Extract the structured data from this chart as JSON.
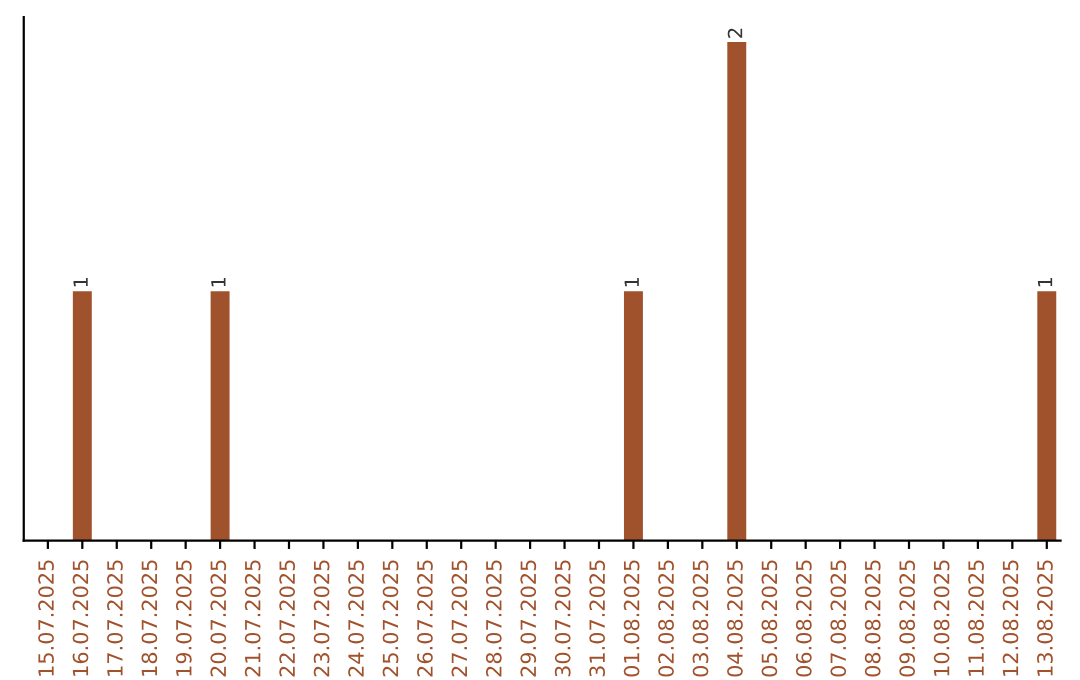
{
  "chart_data": {
    "type": "bar",
    "categories": [
      "15.07.2025",
      "16.07.2025",
      "17.07.2025",
      "18.07.2025",
      "19.07.2025",
      "20.07.2025",
      "21.07.2025",
      "22.07.2025",
      "23.07.2025",
      "24.07.2025",
      "25.07.2025",
      "26.07.2025",
      "27.07.2025",
      "28.07.2025",
      "29.07.2025",
      "30.07.2025",
      "31.07.2025",
      "01.08.2025",
      "02.08.2025",
      "03.08.2025",
      "04.08.2025",
      "05.08.2025",
      "06.08.2025",
      "07.08.2025",
      "08.08.2025",
      "09.08.2025",
      "10.08.2025",
      "11.08.2025",
      "12.08.2025",
      "13.08.2025"
    ],
    "values": [
      0,
      1,
      0,
      0,
      0,
      1,
      0,
      0,
      0,
      0,
      0,
      0,
      0,
      0,
      0,
      0,
      0,
      1,
      0,
      0,
      2,
      0,
      0,
      0,
      0,
      0,
      0,
      0,
      0,
      1
    ],
    "value_labels": [
      null,
      "1",
      null,
      null,
      null,
      "1",
      null,
      null,
      null,
      null,
      null,
      null,
      null,
      null,
      null,
      null,
      null,
      "1",
      null,
      null,
      "2",
      null,
      null,
      null,
      null,
      null,
      null,
      null,
      null,
      "1"
    ],
    "color": "#a0522d",
    "tick_labels": "x",
    "grid": false,
    "legend": false
  }
}
